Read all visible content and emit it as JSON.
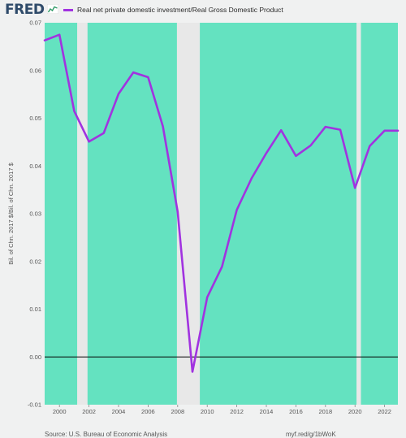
{
  "header": {
    "logo": "FRED",
    "logo_icon": "fred-chart-mark-icon"
  },
  "colors": {
    "background": "#f0f1f1",
    "plot_fill": "#64e2c0",
    "recession_band": "#e8e8e8",
    "series_line": "#a133e0",
    "zero_line": "#000000"
  },
  "chart_data": {
    "type": "line",
    "ylabel": "Bil. of Chn. 2017 $/Bil. of Chn. 2017 $",
    "xlim": [
      1999,
      2022.9
    ],
    "ylim": [
      -0.01,
      0.07
    ],
    "yticks": [
      -0.01,
      0.0,
      0.01,
      0.02,
      0.03,
      0.04,
      0.05,
      0.06,
      0.07
    ],
    "ytick_labels": [
      "-0.01",
      "0.00",
      "0.01",
      "0.02",
      "0.03",
      "0.04",
      "0.05",
      "0.06",
      "0.07"
    ],
    "xticks": [
      2000,
      2002,
      2004,
      2006,
      2008,
      2010,
      2012,
      2014,
      2016,
      2018,
      2020,
      2022
    ],
    "xtick_labels": [
      "2000",
      "2002",
      "2004",
      "2006",
      "2008",
      "2010",
      "2012",
      "2014",
      "2016",
      "2018",
      "2020",
      "2022"
    ],
    "recessions": [
      [
        2001.2,
        2001.9
      ],
      [
        2007.95,
        2009.5
      ],
      [
        2020.1,
        2020.4
      ]
    ],
    "series": [
      {
        "name": "Real net private domestic investment/Real Gross Domestic Product",
        "x": [
          1999,
          2000,
          2001,
          2002,
          2003,
          2004,
          2005,
          2006,
          2007,
          2008,
          2009,
          2010,
          2011,
          2012,
          2013,
          2014,
          2015,
          2016,
          2017,
          2018,
          2019,
          2020,
          2021,
          2022,
          2022.9
        ],
        "y": [
          0.0663,
          0.0675,
          0.0515,
          0.0451,
          0.0469,
          0.0551,
          0.0596,
          0.0586,
          0.0483,
          0.0304,
          -0.0031,
          0.0125,
          0.0189,
          0.0308,
          0.0374,
          0.0427,
          0.0475,
          0.0421,
          0.0443,
          0.0482,
          0.0476,
          0.0354,
          0.0442,
          0.0474,
          0.0474
        ]
      }
    ]
  },
  "footer": {
    "source": "Source: U.S. Bureau of Economic Analysis",
    "link": "myf.red/g/1bWoK"
  }
}
